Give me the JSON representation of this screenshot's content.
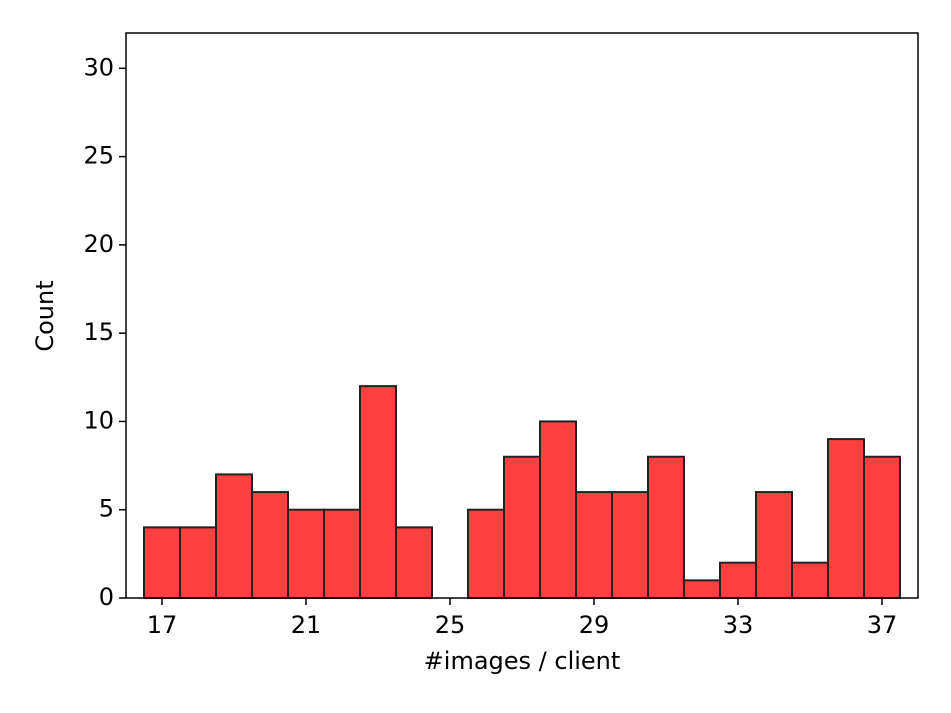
{
  "chart_data": {
    "type": "histogram",
    "x_label": "#images / client",
    "y_label": "Count",
    "bins": [
      16.5,
      17.5,
      18.5,
      19.5,
      20.5,
      21.5,
      22.5,
      23.5,
      24.5,
      25.5,
      26.5,
      27.5,
      28.5,
      29.5,
      30.5,
      31.5,
      32.5,
      33.5,
      34.5,
      35.5,
      36.5,
      37.5
    ],
    "values": [
      4,
      4,
      7,
      6,
      5,
      5,
      12,
      4,
      0,
      5,
      8,
      10,
      6,
      6,
      8,
      1,
      2,
      6,
      2,
      9,
      8
    ],
    "color": "#ff4040",
    "edgecolor": "#222222",
    "xlim": [
      16,
      38
    ],
    "xticks": [
      17,
      21,
      25,
      29,
      33,
      37
    ],
    "ylim": [
      0,
      32
    ],
    "yticks": [
      0,
      5,
      10,
      15,
      20,
      25,
      30
    ]
  }
}
